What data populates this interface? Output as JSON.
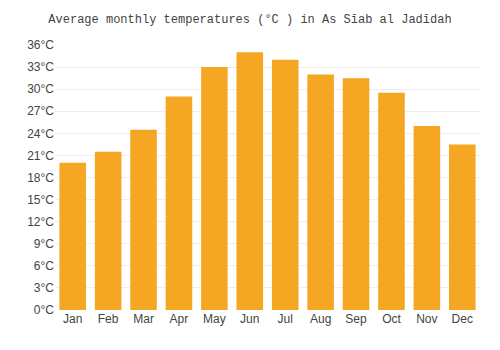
{
  "chart_data": {
    "type": "bar",
    "title": "Average monthly temperatures (°C ) in As Sīab al Jadīdah",
    "categories": [
      "Jan",
      "Feb",
      "Mar",
      "Apr",
      "May",
      "Jun",
      "Jul",
      "Aug",
      "Sep",
      "Oct",
      "Nov",
      "Dec"
    ],
    "values": [
      20.0,
      21.5,
      24.5,
      29.0,
      33.0,
      35.0,
      34.0,
      32.0,
      31.5,
      29.5,
      25.0,
      22.5
    ],
    "color": "#F5A623",
    "ylim": [
      0,
      36
    ],
    "yticks": [
      {
        "value": 0,
        "label": "0°C"
      },
      {
        "value": 3,
        "label": "3°C"
      },
      {
        "value": 6,
        "label": "6°C"
      },
      {
        "value": 9,
        "label": "9°C"
      },
      {
        "value": 12,
        "label": "12°C"
      },
      {
        "value": 15,
        "label": "15°C"
      },
      {
        "value": 18,
        "label": "18°C"
      },
      {
        "value": 21,
        "label": "21°C"
      },
      {
        "value": 24,
        "label": "24°C"
      },
      {
        "value": 27,
        "label": "27°C"
      },
      {
        "value": 30,
        "label": "30°C"
      },
      {
        "value": 33,
        "label": "33°C"
      },
      {
        "value": 36,
        "label": "36°C"
      }
    ],
    "grid": true
  }
}
